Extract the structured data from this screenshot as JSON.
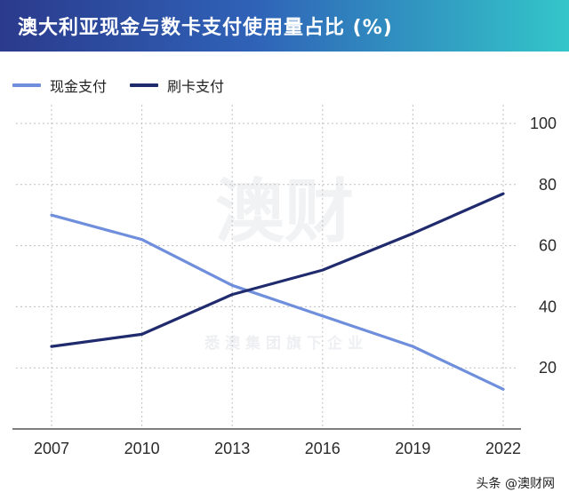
{
  "header": {
    "title": "澳大利亚现金与数卡支付使用量占比 (%)"
  },
  "watermark": {
    "main": "澳财",
    "sub": "悉澳集团旗下企业"
  },
  "credit": "头条 @澳财网",
  "colors": {
    "cash": "#6f8fdc",
    "card": "#202b6e",
    "grid": "#bfbfbf",
    "axis": "#555555"
  },
  "chart_data": {
    "type": "line",
    "title": "澳大利亚现金与数卡支付使用量占比 (%)",
    "x": [
      2007,
      2010,
      2013,
      2016,
      2019,
      2022
    ],
    "x_ticks": [
      "2007",
      "2010",
      "2013",
      "2016",
      "2019",
      "2022"
    ],
    "y_ticks": [
      "20",
      "40",
      "60",
      "80",
      "100"
    ],
    "ylim": [
      0,
      100
    ],
    "y_axis_side": "right",
    "grid": "horizontal dashed",
    "legend_position": "top-left",
    "series": [
      {
        "name": "现金支付",
        "color": "#6f8fdc",
        "values": [
          70,
          62,
          47,
          37,
          27,
          13
        ]
      },
      {
        "name": "刷卡支付",
        "color": "#202b6e",
        "values": [
          27,
          31,
          44,
          52,
          64,
          77
        ]
      }
    ]
  }
}
